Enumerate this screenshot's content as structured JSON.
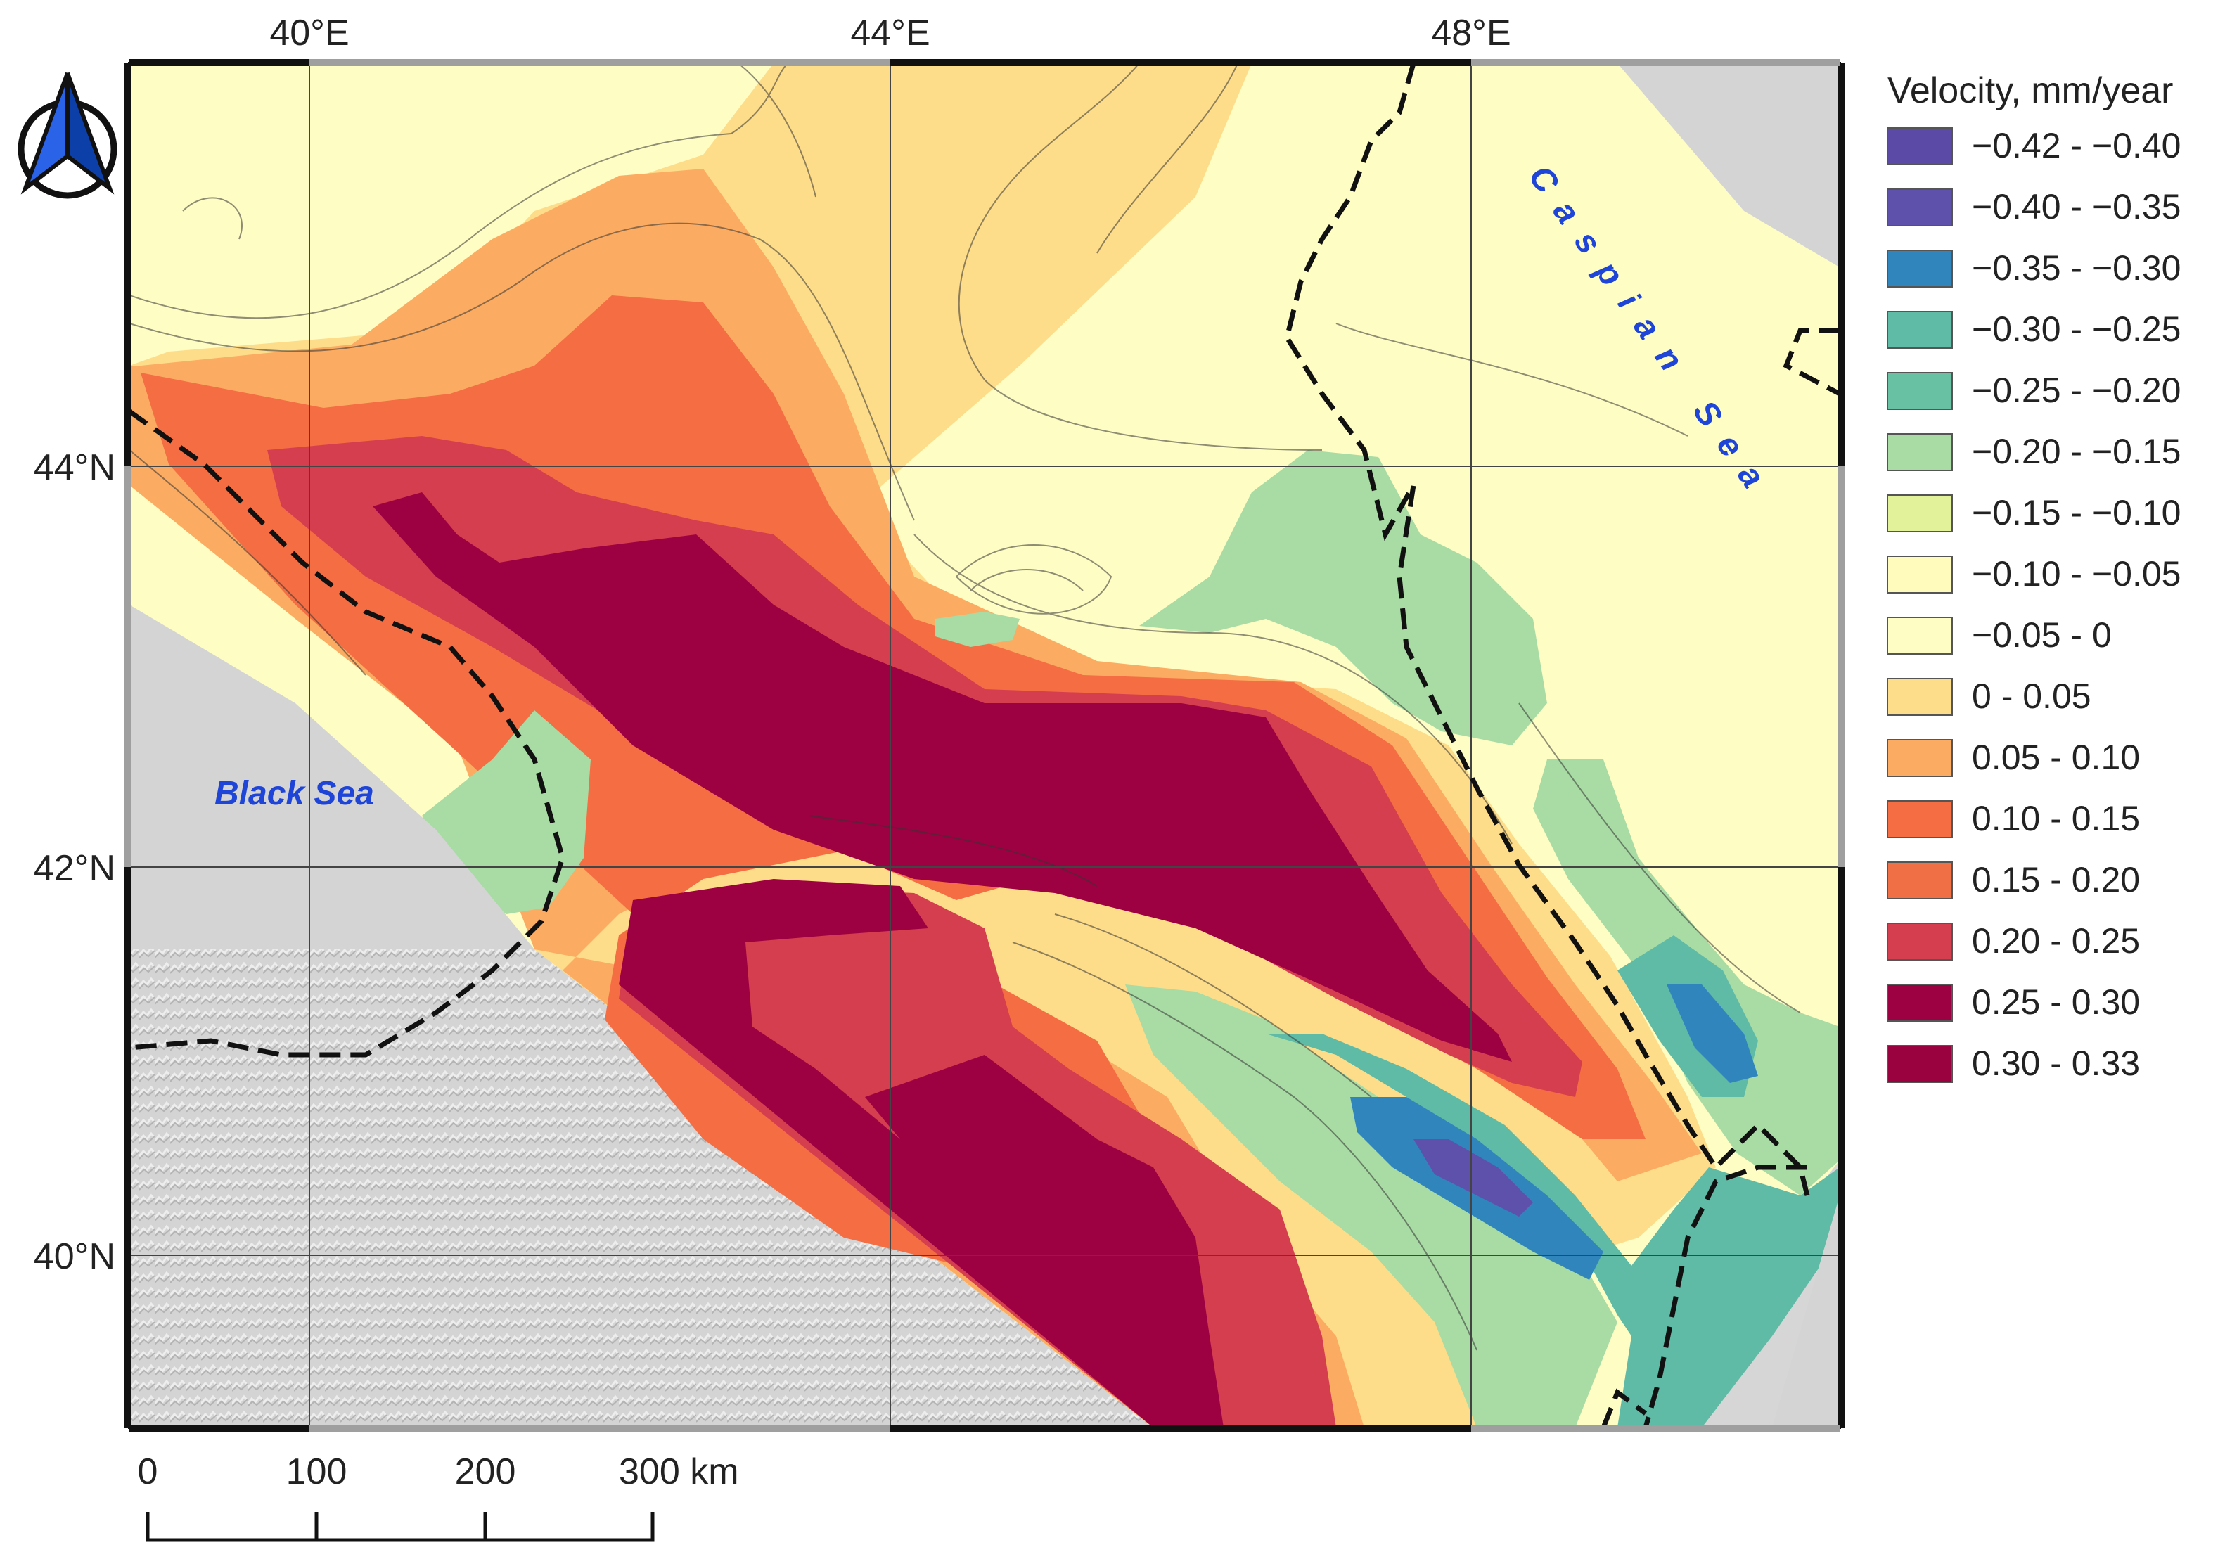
{
  "map": {
    "lon_labels": [
      "40°E",
      "44°E",
      "48°E"
    ],
    "lat_labels": [
      "44°N",
      "42°N",
      "40°N"
    ],
    "sea_labels": {
      "black": "Black Sea",
      "caspian": "Caspian Sea"
    }
  },
  "legend": {
    "title": "Velocity, mm/year",
    "items": [
      {
        "label": "−0.42 - −0.40",
        "color": "#5b4ba6"
      },
      {
        "label": "−0.40 - −0.35",
        "color": "#5e51ab"
      },
      {
        "label": "−0.35 - −0.30",
        "color": "#3185bd"
      },
      {
        "label": "−0.30 - −0.25",
        "color": "#5fbaa6"
      },
      {
        "label": "−0.25 - −0.20",
        "color": "#68c1a2"
      },
      {
        "label": "−0.20 - −0.15",
        "color": "#a8dca4"
      },
      {
        "label": "−0.15 - −0.10",
        "color": "#e2f29b"
      },
      {
        "label": "−0.10 - −0.05",
        "color": "#fefbbc"
      },
      {
        "label": "−0.05 - 0",
        "color": "#fefdc4"
      },
      {
        "label": "0 - 0.05",
        "color": "#fedd8a"
      },
      {
        "label": "0.05 - 0.10",
        "color": "#fbac62"
      },
      {
        "label": "0.10 - 0.15",
        "color": "#f46d43"
      },
      {
        "label": "0.15 - 0.20",
        "color": "#f16f45"
      },
      {
        "label": "0.20 - 0.25",
        "color": "#d53e4f"
      },
      {
        "label": "0.25 - 0.30",
        "color": "#9e0142"
      },
      {
        "label": "0.30 - 0.33",
        "color": "#9a013f"
      }
    ]
  },
  "scale_bar": {
    "labels": [
      "0",
      "100",
      "200",
      "300 km"
    ]
  },
  "north_arrow": {
    "icon": "north-arrow-icon"
  },
  "colors": {
    "land_gray": "#d6d6d6",
    "border": "#111111"
  }
}
